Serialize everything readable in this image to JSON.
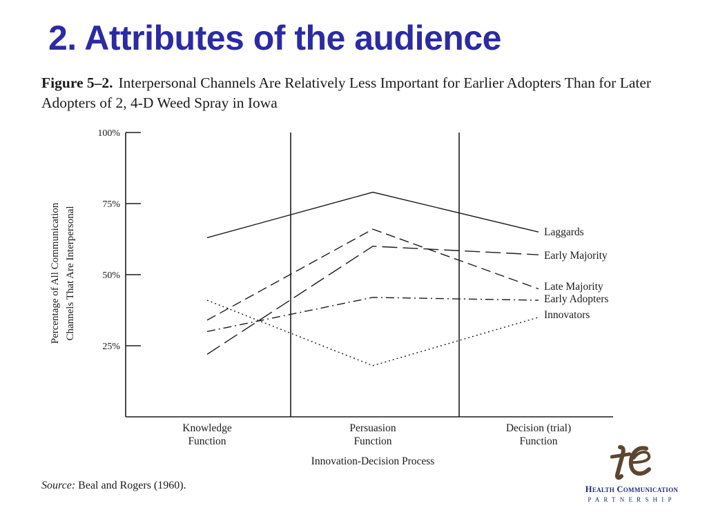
{
  "slide": {
    "title": "2. Attributes of the audience"
  },
  "figure": {
    "number": "Figure 5–2.",
    "caption": "Interpersonal Channels Are Relatively Less Important for Earlier Adopters Than for Later Adopters of 2, 4-D Weed Spray in Iowa"
  },
  "source": {
    "label": "Source:",
    "text": "Beal and Rogers (1960)."
  },
  "logo": {
    "name": "Health Communication",
    "sub": "PARTNERSHIP",
    "mark_color": "#5c4632",
    "text_color": "#1f2d6b"
  },
  "chart_data": {
    "type": "line",
    "title": "Interpersonal Channels Are Relatively Less Important for Earlier Adopters Than for Later Adopters of 2, 4-D Weed Spray in Iowa",
    "xlabel": "Innovation-Decision Process",
    "ylabel": "Percentage of All Communication Channels That Are Interpersonal",
    "categories": [
      "Knowledge Function",
      "Persuasion Function",
      "Decision (trial) Function"
    ],
    "categories_display": [
      [
        "Knowledge",
        "Function"
      ],
      [
        "Persuasion",
        "Function"
      ],
      [
        "Decision (trial)",
        "Function"
      ]
    ],
    "y_ticks": [
      25,
      50,
      75,
      100
    ],
    "y_tick_labels": [
      "25%",
      "50%",
      "75%",
      "100%"
    ],
    "ylim": [
      0,
      100
    ],
    "grid": false,
    "legend": "direct labels at right end of lines",
    "series": [
      {
        "name": "Laggards",
        "values": [
          63,
          79,
          65
        ],
        "dash": "solid"
      },
      {
        "name": "Early Majority",
        "values": [
          22,
          60,
          57
        ],
        "dash": "long-dash"
      },
      {
        "name": "Late Majority",
        "values": [
          34,
          66,
          45
        ],
        "dash": "dash"
      },
      {
        "name": "Early Adopters",
        "values": [
          30,
          42,
          41
        ],
        "dash": "dash-dot"
      },
      {
        "name": "Innovators",
        "values": [
          41,
          18,
          35
        ],
        "dash": "dotted"
      }
    ],
    "colors": {
      "ink": "#1a1a1a",
      "title": "#2b2ba3"
    }
  }
}
